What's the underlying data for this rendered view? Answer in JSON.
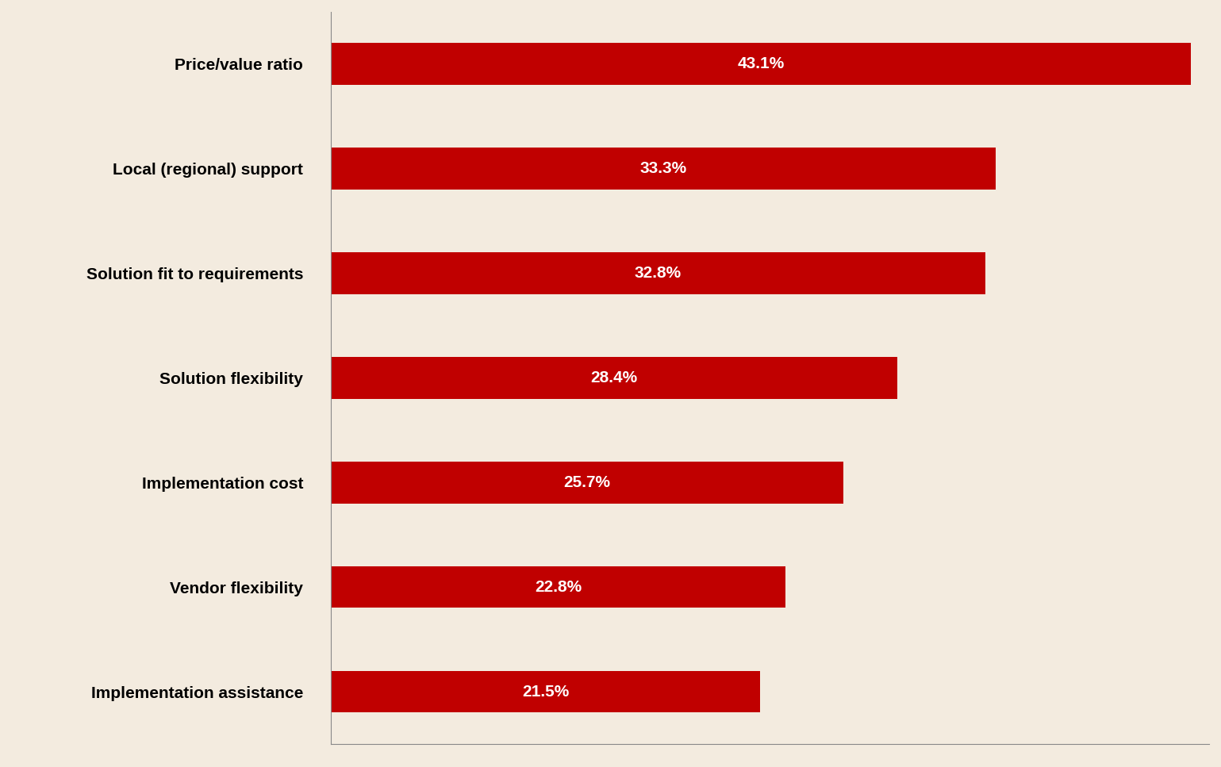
{
  "chart_data": {
    "type": "bar",
    "orientation": "horizontal",
    "categories": [
      "Price/value ratio",
      "Local (regional) support",
      "Solution fit to requirements",
      "Solution flexibility",
      "Implementation cost",
      "Vendor flexibility",
      "Implementation assistance"
    ],
    "values": [
      43.1,
      33.3,
      32.8,
      28.4,
      25.7,
      22.8,
      21.5
    ],
    "value_labels": [
      "43.1%",
      "33.3%",
      "32.8%",
      "28.4%",
      "25.7%",
      "22.8%",
      "21.5%"
    ],
    "color": "#c00000",
    "xlim": [
      0,
      44
    ],
    "data_labels": true,
    "tick_labels": "y",
    "grid": false
  }
}
